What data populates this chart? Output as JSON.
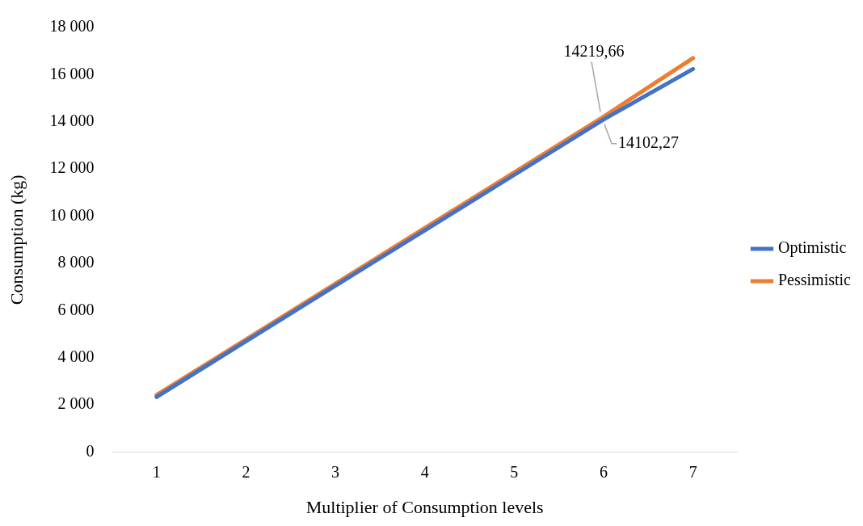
{
  "chart_data": {
    "type": "line",
    "xlabel": "Multiplier of Consumption levels",
    "ylabel": "Consumption (kg)",
    "categories": [
      "1",
      "2",
      "3",
      "4",
      "5",
      "6",
      "7"
    ],
    "series": [
      {
        "name": "Optimistic",
        "color": "#4472c4",
        "values": [
          2340,
          4700,
          7050,
          9400,
          11750,
          14102.27,
          16240
        ],
        "value_labels": [
          null,
          null,
          null,
          null,
          null,
          "14102,27",
          null
        ]
      },
      {
        "name": "Pessimistic",
        "color": "#ed7d31",
        "values": [
          2420,
          4780,
          7140,
          9500,
          11860,
          14219.66,
          16700
        ],
        "value_labels": [
          null,
          null,
          null,
          null,
          null,
          "14219,66",
          null
        ]
      }
    ],
    "ylim": [
      0,
      18000
    ],
    "yticks": [
      {
        "value": 0,
        "label": "0"
      },
      {
        "value": 2000,
        "label": "2 000"
      },
      {
        "value": 4000,
        "label": "4 000"
      },
      {
        "value": 6000,
        "label": "6 000"
      },
      {
        "value": 8000,
        "label": "8 000"
      },
      {
        "value": 10000,
        "label": "10 000"
      },
      {
        "value": 12000,
        "label": "12 000"
      },
      {
        "value": 14000,
        "label": "14 000"
      },
      {
        "value": 16000,
        "label": "16 000"
      },
      {
        "value": 18000,
        "label": "18 000"
      }
    ],
    "grid": false,
    "legend": "right",
    "marker": "none",
    "line_style": "solid"
  }
}
